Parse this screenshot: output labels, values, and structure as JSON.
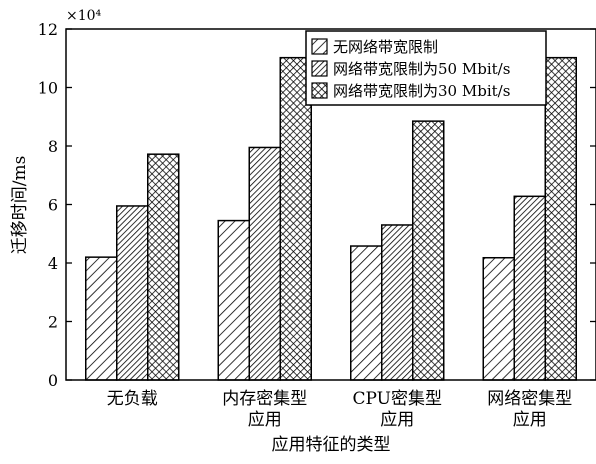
{
  "chart_data": {
    "type": "bar",
    "xlabel": "应用特征的类型",
    "ylabel": "迁移时间/ms",
    "y_multiplier_label": "×10⁴",
    "ylim": [
      0,
      12
    ],
    "yticks": [
      0,
      2,
      4,
      6,
      8,
      10,
      12
    ],
    "categories": [
      [
        "无负载"
      ],
      [
        "内存密集型",
        "应用"
      ],
      [
        "CPU密集型",
        "应用"
      ],
      [
        "网络密集型",
        "应用"
      ]
    ],
    "series": [
      {
        "name": "无网络带宽限制",
        "pattern": "diagonal-sparse",
        "values": [
          4.2,
          5.45,
          4.58,
          4.18
        ]
      },
      {
        "name": "网络带宽限制为50 Mbit/s",
        "pattern": "diagonal-dense",
        "values": [
          5.95,
          7.95,
          5.3,
          6.28
        ]
      },
      {
        "name": "网络带宽限制为30 Mbit/s",
        "pattern": "crosshatch",
        "values": [
          7.72,
          11.02,
          8.85,
          11.02
        ]
      }
    ],
    "legend_position": "top-right",
    "grid": false
  }
}
